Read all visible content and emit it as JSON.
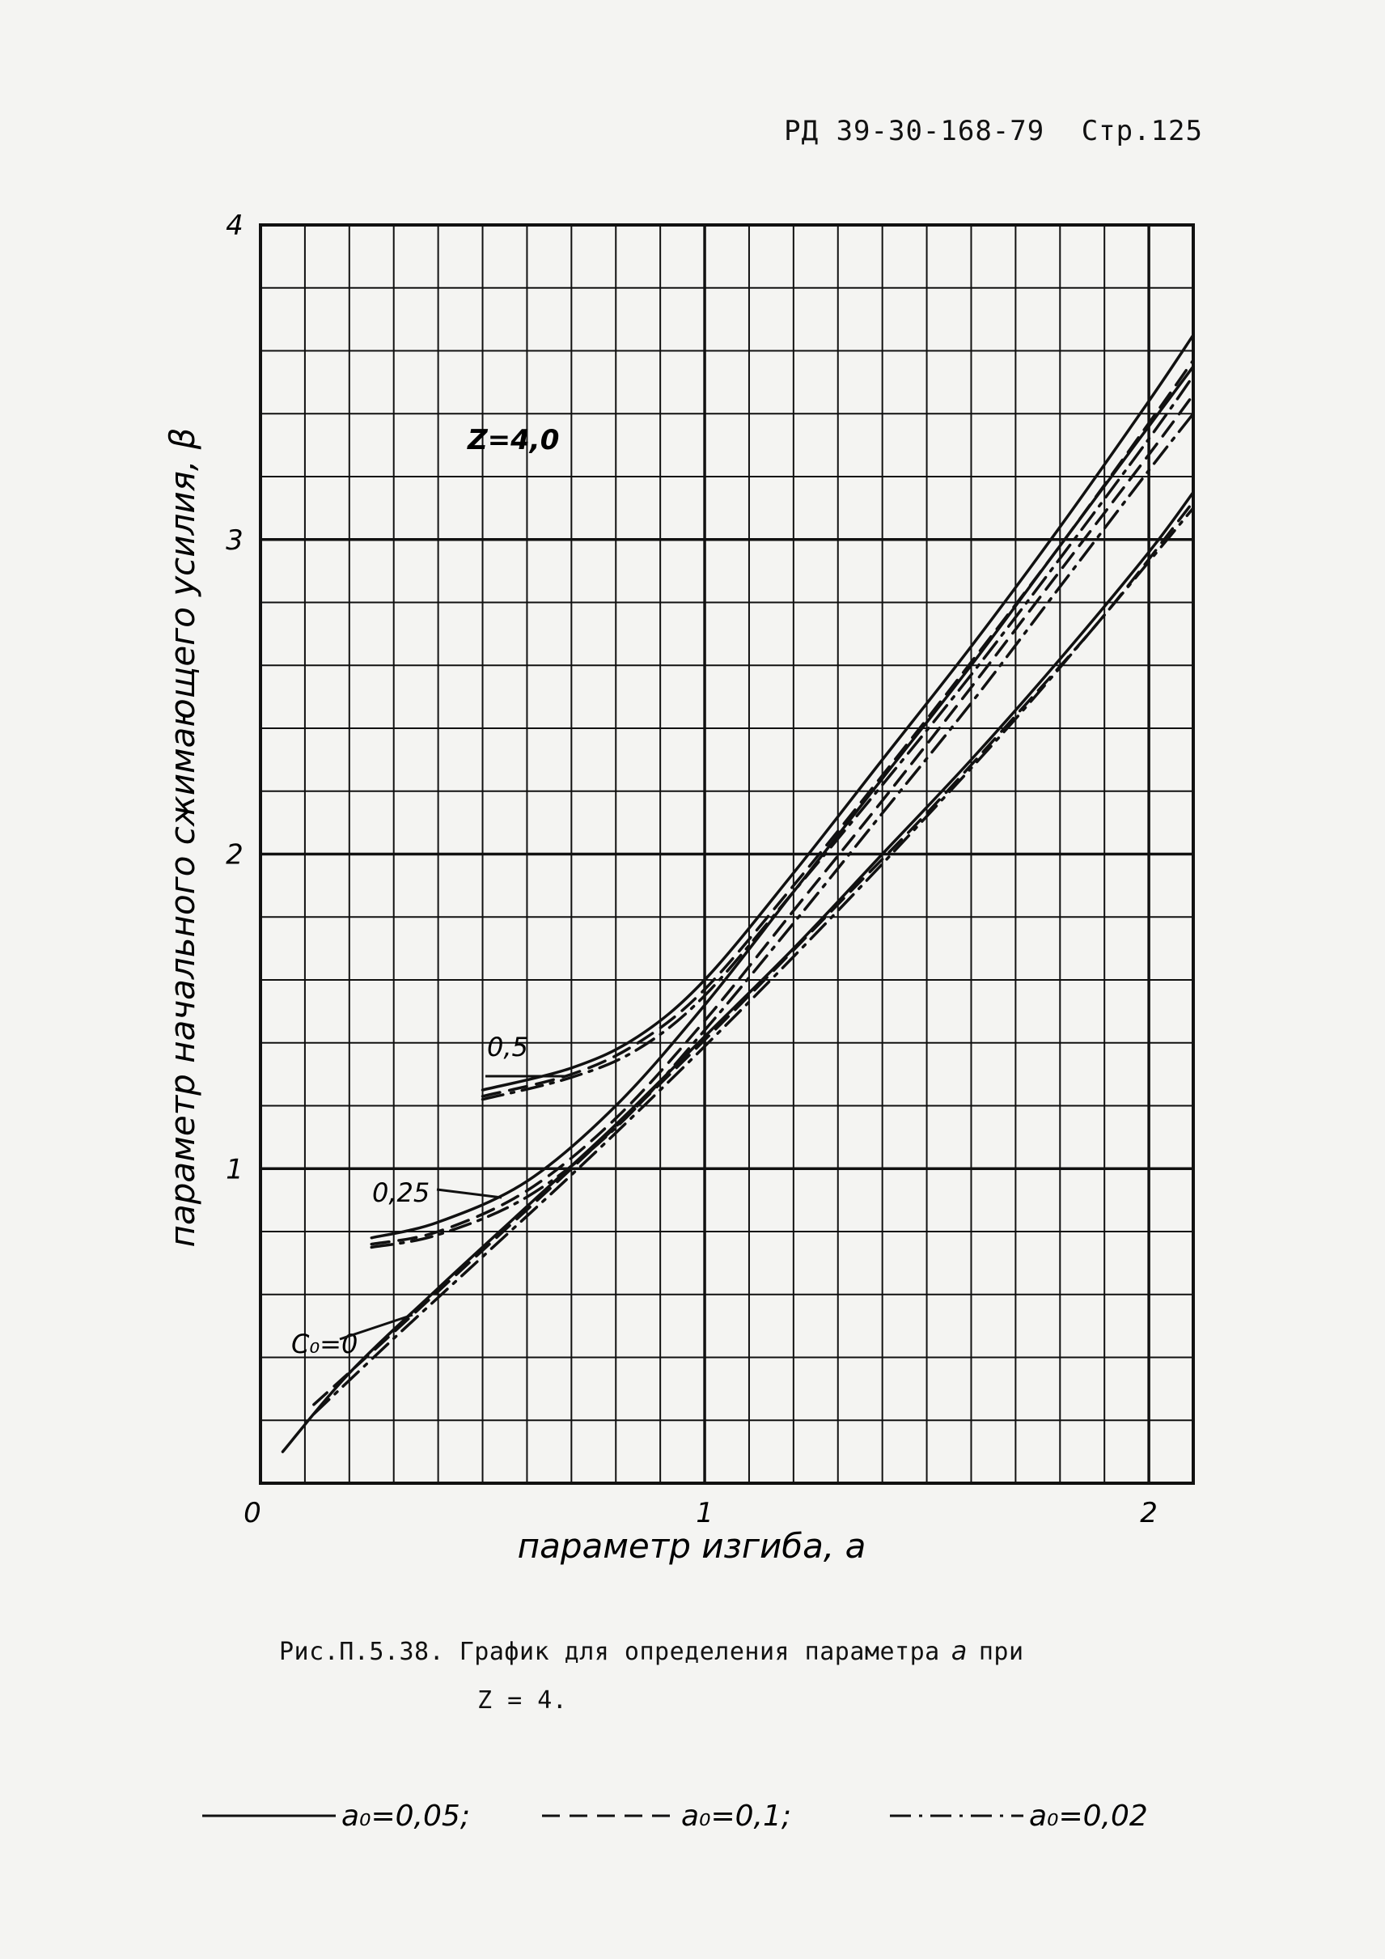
{
  "header": {
    "doc_code": "РД 39-30-168-79",
    "page": "Стр.125"
  },
  "caption": {
    "text": "Рис.П.5.38. График для определения параметра",
    "variable": "a",
    "condition_word": "при",
    "line2": "Z = 4."
  },
  "chart_data": {
    "type": "line",
    "title": "",
    "xlabel": "параметр изгиба, a",
    "ylabel": "параметр начального сжимающего усилия, β",
    "xlim": [
      0,
      2.1
    ],
    "ylim": [
      0,
      4
    ],
    "xticks": [
      "0",
      "1",
      "2"
    ],
    "yticks": [
      "1",
      "2",
      "3",
      "4"
    ],
    "grid": true,
    "annotation": "Z=4,0",
    "curve_labels": [
      "0,5",
      "0,25",
      "C₀=0"
    ],
    "legend_position": "bottom",
    "legend": [
      {
        "label": "a₀=0,05;",
        "style": "solid"
      },
      {
        "label": "a₀=0,1;",
        "style": "dashed"
      },
      {
        "label": "a₀=0,02",
        "style": "dash-dot"
      }
    ],
    "series": [
      {
        "group": "C0=0",
        "style": "solid",
        "x": [
          0.05,
          0.2,
          0.4,
          0.6,
          0.8,
          1.0,
          1.2,
          1.4,
          1.6,
          1.8,
          2.0,
          2.1
        ],
        "y": [
          0.1,
          0.35,
          0.62,
          0.88,
          1.14,
          1.42,
          1.7,
          2.0,
          2.3,
          2.62,
          2.96,
          3.15
        ]
      },
      {
        "group": "C0=0",
        "style": "dashed",
        "x": [
          0.12,
          0.3,
          0.5,
          0.7,
          0.9,
          1.1,
          1.3,
          1.5,
          1.7,
          1.9,
          2.1
        ],
        "y": [
          0.25,
          0.48,
          0.74,
          1.0,
          1.27,
          1.55,
          1.84,
          2.13,
          2.44,
          2.76,
          3.12
        ]
      },
      {
        "group": "C0=0",
        "style": "dash-dot",
        "x": [
          0.12,
          0.3,
          0.5,
          0.7,
          0.9,
          1.1,
          1.3,
          1.5,
          1.7,
          1.9,
          2.1
        ],
        "y": [
          0.22,
          0.46,
          0.72,
          0.98,
          1.25,
          1.53,
          1.82,
          2.12,
          2.43,
          2.76,
          3.1
        ]
      },
      {
        "group": "0,25",
        "style": "solid",
        "x": [
          0.25,
          0.4,
          0.6,
          0.8,
          1.0,
          1.2,
          1.4,
          1.6,
          1.8,
          2.0,
          2.1
        ],
        "y": [
          0.78,
          0.83,
          0.96,
          1.2,
          1.52,
          1.88,
          2.24,
          2.6,
          2.98,
          3.36,
          3.55
        ]
      },
      {
        "group": "0,25",
        "style": "dashed",
        "x": [
          0.25,
          0.4,
          0.6,
          0.8,
          1.0,
          1.2,
          1.4,
          1.6,
          1.8,
          2.0,
          2.1
        ],
        "y": [
          0.76,
          0.8,
          0.93,
          1.16,
          1.47,
          1.82,
          2.17,
          2.53,
          2.9,
          3.27,
          3.46
        ]
      },
      {
        "group": "0,25",
        "style": "dash-dot",
        "x": [
          0.25,
          0.4,
          0.6,
          0.8,
          1.0,
          1.2,
          1.4,
          1.6,
          1.8,
          2.0,
          2.1
        ],
        "y": [
          0.75,
          0.79,
          0.91,
          1.13,
          1.44,
          1.78,
          2.13,
          2.48,
          2.85,
          3.22,
          3.4
        ]
      },
      {
        "group": "0,5",
        "style": "solid",
        "x": [
          0.5,
          0.7,
          0.85,
          1.0,
          1.2,
          1.4,
          1.6,
          1.8,
          2.0,
          2.1
        ],
        "y": [
          1.25,
          1.32,
          1.42,
          1.6,
          1.94,
          2.3,
          2.66,
          3.04,
          3.44,
          3.65
        ]
      },
      {
        "group": "0,5",
        "style": "dashed",
        "x": [
          0.5,
          0.7,
          0.85,
          1.0,
          1.2,
          1.4,
          1.6,
          1.8,
          2.0,
          2.1
        ],
        "y": [
          1.23,
          1.3,
          1.4,
          1.57,
          1.9,
          2.25,
          2.61,
          2.98,
          3.37,
          3.57
        ]
      },
      {
        "group": "0,5",
        "style": "dash-dot",
        "x": [
          0.5,
          0.7,
          0.85,
          1.0,
          1.2,
          1.4,
          1.6,
          1.8,
          2.0,
          2.1
        ],
        "y": [
          1.22,
          1.29,
          1.38,
          1.55,
          1.88,
          2.22,
          2.57,
          2.94,
          3.32,
          3.52
        ]
      }
    ]
  },
  "colors": {
    "ink": "#111111",
    "paper": "#f4f4f2"
  }
}
